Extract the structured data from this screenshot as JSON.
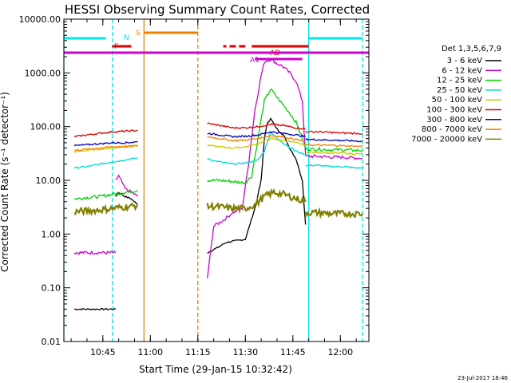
{
  "chart_data": {
    "type": "line",
    "title": "HESSI Observing Summary Count Rates, Corrected",
    "xlabel": "Start Time (29-Jan-15 10:32:42)",
    "ylabel": "Corrected Count Rate (s⁻¹ detector⁻¹)",
    "yscale": "log",
    "ylim": [
      0.01,
      10000
    ],
    "xlim": [
      "10:32:42",
      "12:09:00"
    ],
    "x_ticks": [
      "10:45",
      "11:00",
      "11:15",
      "11:30",
      "11:45",
      "12:00"
    ],
    "y_ticks": [
      "10000.00",
      "1000.00",
      "100.00",
      "10.00",
      "1.00",
      "0.10",
      "0.01"
    ],
    "footer_date": "23-Jul-2017 18:46",
    "legend": {
      "title": "Det 1,3,5,6,7,9",
      "placement": "right",
      "entries": [
        {
          "label": "3 - 6 keV",
          "color": "#000000"
        },
        {
          "label": "6 - 12 keV",
          "color": "#d000d0"
        },
        {
          "label": "12 - 25 keV",
          "color": "#00d000"
        },
        {
          "label": "25 - 50 keV",
          "color": "#00d8d8"
        },
        {
          "label": "50 - 100 keV",
          "color": "#d0c800"
        },
        {
          "label": "100 - 300 keV",
          "color": "#e00000"
        },
        {
          "label": "300 - 800 keV",
          "color": "#0000c0"
        },
        {
          "label": "800 - 7000 keV",
          "color": "#f08000"
        },
        {
          "label": "7000 - 20000 keV",
          "color": "#808000"
        }
      ]
    },
    "series": [
      {
        "name": "3 - 6 keV",
        "color": "#000000",
        "segments": [
          {
            "x": [
              "10:36",
              "10:41",
              "10:46",
              "10:48",
              "10:49"
            ],
            "y": [
              0.04,
              0.04,
              0.04,
              0.04,
              0.04
            ]
          },
          {
            "x": [
              "10:49",
              "10:50",
              "10:52",
              "10:54",
              "10:56"
            ],
            "y": [
              5.0,
              6.0,
              5.0,
              4.5,
              3.5
            ]
          },
          {
            "x": [
              "11:18",
              "11:21",
              "11:24",
              "11:27",
              "11:30",
              "11:33",
              "11:35",
              "11:36",
              "11:37",
              "11:38",
              "11:40",
              "11:42",
              "11:44",
              "11:46",
              "11:48",
              "11:49"
            ],
            "y": [
              0.45,
              0.55,
              0.7,
              0.75,
              0.8,
              3.0,
              10,
              60,
              120,
              140,
              90,
              70,
              40,
              25,
              10,
              1.5
            ]
          }
        ]
      },
      {
        "name": "6 - 12 keV",
        "color": "#d000d0",
        "segments": [
          {
            "x": [
              "10:36",
              "10:40",
              "10:44",
              "10:48",
              "10:49"
            ],
            "y": [
              0.45,
              0.45,
              0.45,
              0.45,
              0.45
            ]
          },
          {
            "x": [
              "10:49",
              "10:50",
              "10:52",
              "10:54",
              "10:56"
            ],
            "y": [
              10,
              12,
              7,
              6,
              5
            ]
          },
          {
            "x": [
              "11:18",
              "11:20",
              "11:23",
              "11:26",
              "11:29",
              "11:31",
              "11:33",
              "11:35",
              "11:36",
              "11:38",
              "11:40",
              "11:42",
              "11:44",
              "11:46",
              "11:48",
              "11:49"
            ],
            "y": [
              0.15,
              1.4,
              1.8,
              2.5,
              3.0,
              20,
              200,
              900,
              1600,
              1800,
              1500,
              1300,
              1000,
              700,
              300,
              30
            ]
          },
          {
            "x": [
              "11:49",
              "11:53",
              "11:57",
              "12:01",
              "12:05",
              "12:07"
            ],
            "y": [
              28,
              28,
              27,
              27,
              26,
              26
            ]
          }
        ]
      },
      {
        "name": "12 - 25 keV",
        "color": "#00d000",
        "segments": [
          {
            "x": [
              "10:36",
              "10:40",
              "10:44",
              "10:48",
              "10:52",
              "10:56"
            ],
            "y": [
              4.5,
              4.8,
              5.0,
              5.5,
              6.0,
              6.5
            ]
          },
          {
            "x": [
              "11:18",
              "11:22",
              "11:26",
              "11:30",
              "11:32",
              "11:34",
              "11:36",
              "11:38",
              "11:40",
              "11:42",
              "11:44",
              "11:46",
              "11:48",
              "11:49"
            ],
            "y": [
              10,
              10,
              9.5,
              9,
              12,
              60,
              300,
              500,
              350,
              250,
              180,
              120,
              60,
              40
            ]
          },
          {
            "x": [
              "11:49",
              "11:53",
              "11:57",
              "12:01",
              "12:05",
              "12:07"
            ],
            "y": [
              38,
              38,
              37,
              37,
              36,
              36
            ]
          }
        ]
      },
      {
        "name": "25 - 50 keV",
        "color": "#00d8d8",
        "segments": [
          {
            "x": [
              "10:36",
              "10:40",
              "10:44",
              "10:48",
              "10:52",
              "10:56"
            ],
            "y": [
              17,
              18,
              20,
              22,
              24,
              26
            ]
          },
          {
            "x": [
              "11:18",
              "11:22",
              "11:26",
              "11:30",
              "11:34",
              "11:36",
              "11:38",
              "11:40",
              "11:43",
              "11:46",
              "11:49"
            ],
            "y": [
              25,
              22,
              20,
              21,
              24,
              35,
              80,
              60,
              45,
              35,
              30
            ]
          },
          {
            "x": [
              "11:49",
              "11:53",
              "11:57",
              "12:01",
              "12:05",
              "12:07"
            ],
            "y": [
              19,
              19,
              18,
              18,
              17,
              17
            ]
          }
        ]
      },
      {
        "name": "50 - 100 keV",
        "color": "#d0c800",
        "segments": [
          {
            "x": [
              "10:36",
              "10:40",
              "10:44",
              "10:48",
              "10:52",
              "10:56"
            ],
            "y": [
              34,
              36,
              38,
              40,
              42,
              44
            ]
          },
          {
            "x": [
              "11:18",
              "11:22",
              "11:26",
              "11:30",
              "11:34",
              "11:38",
              "11:42",
              "11:46",
              "11:49"
            ],
            "y": [
              45,
              42,
              40,
              42,
              48,
              60,
              55,
              50,
              45
            ]
          },
          {
            "x": [
              "11:49",
              "11:53",
              "11:57",
              "12:01",
              "12:05",
              "12:07"
            ],
            "y": [
              33,
              33,
              32,
              32,
              31,
              31
            ]
          }
        ]
      },
      {
        "name": "100 - 300 keV",
        "color": "#e00000",
        "segments": [
          {
            "x": [
              "10:36",
              "10:40",
              "10:44",
              "10:48",
              "10:52",
              "10:56"
            ],
            "y": [
              65,
              70,
              75,
              80,
              82,
              85
            ]
          },
          {
            "x": [
              "11:18",
              "11:22",
              "11:26",
              "11:30",
              "11:34",
              "11:38",
              "11:42",
              "11:46",
              "11:49"
            ],
            "y": [
              115,
              105,
              95,
              95,
              100,
              110,
              105,
              95,
              90
            ]
          },
          {
            "x": [
              "11:49",
              "11:53",
              "11:57",
              "12:01",
              "12:05",
              "12:07"
            ],
            "y": [
              80,
              80,
              78,
              76,
              75,
              74
            ]
          }
        ]
      },
      {
        "name": "300 - 800 keV",
        "color": "#0000c0",
        "segments": [
          {
            "x": [
              "10:36",
              "10:40",
              "10:44",
              "10:48",
              "10:52",
              "10:56"
            ],
            "y": [
              44,
              46,
              48,
              50,
              50,
              52
            ]
          },
          {
            "x": [
              "11:18",
              "11:22",
              "11:26",
              "11:30",
              "11:34",
              "11:38",
              "11:42",
              "11:46",
              "11:49"
            ],
            "y": [
              75,
              70,
              65,
              66,
              70,
              80,
              75,
              70,
              65
            ]
          },
          {
            "x": [
              "11:49",
              "11:53",
              "11:57",
              "12:01",
              "12:05",
              "12:07"
            ],
            "y": [
              58,
              57,
              56,
              55,
              54,
              53
            ]
          }
        ]
      },
      {
        "name": "800 - 7000 keV",
        "color": "#f08000",
        "segments": [
          {
            "x": [
              "10:36",
              "10:40",
              "10:44",
              "10:48",
              "10:52",
              "10:56"
            ],
            "y": [
              36,
              38,
              40,
              42,
              43,
              44
            ]
          },
          {
            "x": [
              "11:18",
              "11:22",
              "11:26",
              "11:30",
              "11:34",
              "11:38",
              "11:42",
              "11:46",
              "11:49"
            ],
            "y": [
              65,
              60,
              55,
              56,
              60,
              68,
              64,
              58,
              52
            ]
          },
          {
            "x": [
              "11:49",
              "11:53",
              "11:57",
              "12:01",
              "12:05",
              "12:07"
            ],
            "y": [
              46,
              45,
              45,
              44,
              43,
              43
            ]
          }
        ]
      },
      {
        "name": "7000 - 20000 keV",
        "color": "#808000",
        "segments": [
          {
            "x": [
              "10:36",
              "10:40",
              "10:44",
              "10:48",
              "10:52",
              "10:56"
            ],
            "y": [
              2.6,
              2.7,
              2.8,
              3.0,
              3.2,
              3.4
            ]
          },
          {
            "x": [
              "11:18",
              "11:22",
              "11:26",
              "11:30",
              "11:33",
              "11:36",
              "11:39",
              "11:42",
              "11:45",
              "11:48",
              "11:49"
            ],
            "y": [
              3.3,
              3.2,
              3.0,
              3.0,
              3.5,
              5.0,
              6.0,
              5.5,
              4.8,
              4.2,
              4.0
            ]
          },
          {
            "x": [
              "11:49",
              "11:53",
              "11:57",
              "12:01",
              "12:05",
              "12:07"
            ],
            "y": [
              2.5,
              2.5,
              2.4,
              2.4,
              2.4,
              2.4
            ]
          }
        ]
      }
    ],
    "flag_bars": [
      {
        "label": "N",
        "color": "#00e8e8",
        "segments": [
          [
            "10:32:42",
            "10:46"
          ],
          [
            "11:50",
            "12:07"
          ]
        ]
      },
      {
        "label": "S",
        "color": "#f08000",
        "segments": [
          [
            "10:58",
            "11:15"
          ]
        ]
      },
      {
        "label": "F",
        "color": "#e00000",
        "segments": [
          [
            "10:48",
            "10:54"
          ],
          [
            "11:23",
            "11:24"
          ],
          [
            "11:25",
            "11:27"
          ],
          [
            "11:28",
            "11:30"
          ],
          [
            "11:32",
            "11:50"
          ]
        ]
      },
      {
        "label": "AD",
        "color": "#e00000",
        "segments": [
          [
            "11:35",
            "11:45"
          ]
        ]
      },
      {
        "label": "A1",
        "color": "#d000d0",
        "segments": [
          [
            "11:33",
            "11:48"
          ]
        ]
      },
      {
        "label": "",
        "color": "#d000d0",
        "segments": [
          [
            "10:32:42",
            "12:09"
          ]
        ]
      }
    ],
    "vertical_markers": [
      {
        "x": "10:32:42",
        "color": "#00e8e8",
        "style": "solid"
      },
      {
        "x": "10:48",
        "color": "#00e8e8",
        "style": "dashed"
      },
      {
        "x": "10:58",
        "color": "#f08000",
        "style": "solid"
      },
      {
        "x": "11:15",
        "color": "#f08000",
        "style": "dashed"
      },
      {
        "x": "11:50",
        "color": "#00e8e8",
        "style": "solid"
      },
      {
        "x": "12:07",
        "color": "#00e8e8",
        "style": "dashed"
      }
    ]
  }
}
